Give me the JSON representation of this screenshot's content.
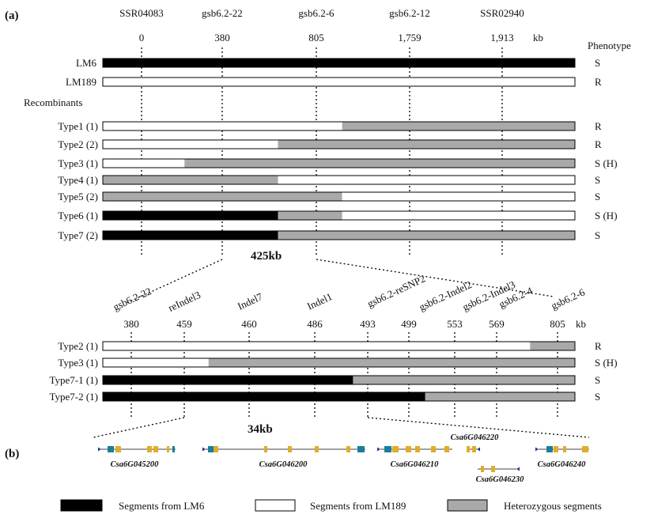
{
  "panel_a": {
    "label": "(a)",
    "phenotype_header": "Phenotype",
    "unit": "kb",
    "markers": [
      {
        "name": "SSR04083",
        "pos": "0"
      },
      {
        "name": "gsb6.2-22",
        "pos": "380"
      },
      {
        "name": "gsb6.2-6",
        "pos": "805"
      },
      {
        "name": "gsb6.2-12",
        "pos": "1,759"
      },
      {
        "name": "SSR02940",
        "pos": "1,913"
      }
    ],
    "parents": [
      {
        "label": "LM6",
        "phenotype": "S",
        "fill": "#000000"
      },
      {
        "label": "LM189",
        "phenotype": "R",
        "fill": "#ffffff"
      }
    ],
    "recombinants_label": "Recombinants",
    "rows": [
      {
        "label": "Type1 (1)",
        "phenotype": "R",
        "segments": [
          {
            "s": 0,
            "e": 0.507,
            "t": "white"
          },
          {
            "s": 0.507,
            "e": 1,
            "t": "het"
          }
        ]
      },
      {
        "label": "Type2 (2)",
        "phenotype": "R",
        "segments": [
          {
            "s": 0,
            "e": 0.371,
            "t": "white"
          },
          {
            "s": 0.371,
            "e": 1,
            "t": "het"
          }
        ]
      },
      {
        "label": "Type3 (1)",
        "phenotype": "S (H)",
        "segments": [
          {
            "s": 0,
            "e": 0.173,
            "t": "white"
          },
          {
            "s": 0.173,
            "e": 1,
            "t": "het"
          }
        ]
      },
      {
        "label": "Type4 (1)",
        "phenotype": "S",
        "segments": [
          {
            "s": 0,
            "e": 0.371,
            "t": "het"
          },
          {
            "s": 0.371,
            "e": 1,
            "t": "white"
          }
        ]
      },
      {
        "label": "Type5 (2)",
        "phenotype": "S",
        "segments": [
          {
            "s": 0,
            "e": 0.507,
            "t": "het"
          },
          {
            "s": 0.507,
            "e": 1,
            "t": "white"
          }
        ]
      },
      {
        "label": "Type6 (1)",
        "phenotype": "S (H)",
        "segments": [
          {
            "s": 0,
            "e": 0.371,
            "t": "black"
          },
          {
            "s": 0.371,
            "e": 0.507,
            "t": "het"
          },
          {
            "s": 0.507,
            "e": 1,
            "t": "white"
          }
        ]
      },
      {
        "label": "Type7 (2)",
        "phenotype": "S",
        "segments": [
          {
            "s": 0,
            "e": 0.371,
            "t": "black"
          },
          {
            "s": 0.371,
            "e": 1,
            "t": "het"
          }
        ]
      }
    ],
    "interval_label": "425kb"
  },
  "panel_a2": {
    "unit": "kb",
    "markers": [
      {
        "name": "gsb6.2-22",
        "pos": "380"
      },
      {
        "name": "reIndel3",
        "pos": "459"
      },
      {
        "name": "Indel7",
        "pos": "460"
      },
      {
        "name": "Indel1",
        "pos": "486"
      },
      {
        "name": "gsb6.2-reSNP2",
        "pos": "493"
      },
      {
        "name": "gsb6.2-Indel2",
        "pos": "499"
      },
      {
        "name": "gsb6.2-Indel3",
        "pos": "553"
      },
      {
        "name": "gsb6.2-4",
        "pos": "569"
      },
      {
        "name": "gsb6.2-6",
        "pos": "805"
      }
    ],
    "rows": [
      {
        "label": "Type2 (1)",
        "phenotype": "R",
        "segments": [
          {
            "s": 0,
            "e": 0.905,
            "t": "white"
          },
          {
            "s": 0.905,
            "e": 1,
            "t": "het"
          }
        ]
      },
      {
        "label": "Type3 (1)",
        "phenotype": "S (H)",
        "segments": [
          {
            "s": 0,
            "e": 0.224,
            "t": "white"
          },
          {
            "s": 0.224,
            "e": 1,
            "t": "het"
          }
        ]
      },
      {
        "label": "Type7-1 (1)",
        "phenotype": "S",
        "segments": [
          {
            "s": 0,
            "e": 0.53,
            "t": "black"
          },
          {
            "s": 0.53,
            "e": 1,
            "t": "het"
          }
        ]
      },
      {
        "label": "Type7-2 (1)",
        "phenotype": "S",
        "segments": [
          {
            "s": 0,
            "e": 0.683,
            "t": "black"
          },
          {
            "s": 0.683,
            "e": 1,
            "t": "het"
          }
        ]
      }
    ],
    "interval_label": "34kb"
  },
  "panel_b": {
    "label": "(b)",
    "genes": [
      "Csa6G045200",
      "Csa6G046200",
      "Csa6G046210",
      "Csa6G046220",
      "Csa6G046230",
      "Csa6G046240"
    ]
  },
  "legend": [
    {
      "label": "Segments from LM6",
      "fill": "#000000"
    },
    {
      "label": "Segments from LM189",
      "fill": "#ffffff"
    },
    {
      "label": "Heterozygous segments",
      "fill": "#a9a9a9"
    }
  ],
  "colors": {
    "black": "#000000",
    "white": "#ffffff",
    "het": "#a9a9a9",
    "exon": "#e0ac2b",
    "utr": "#1a7f96",
    "line": "#000000"
  }
}
